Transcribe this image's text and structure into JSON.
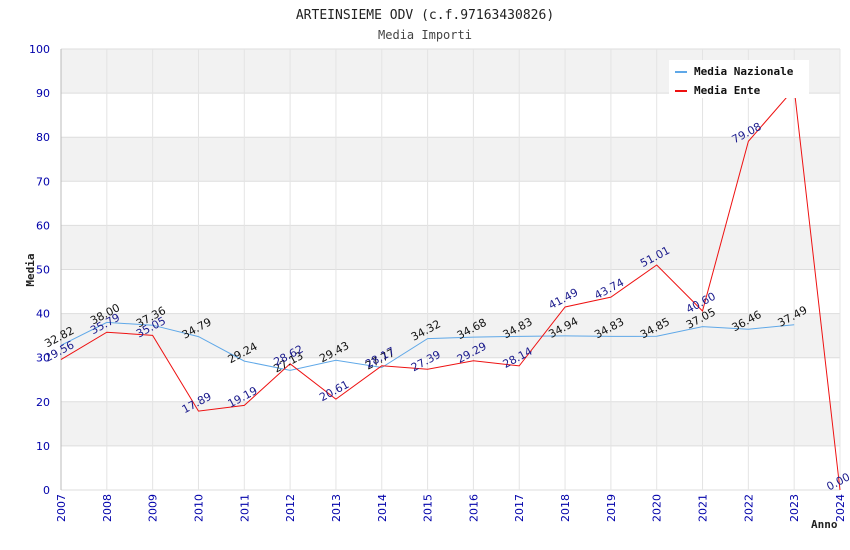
{
  "chart_data": {
    "type": "line",
    "title": "ARTEINSIEME ODV (c.f.97163430826)",
    "subtitle": "Media Importi",
    "xlabel": "Anno",
    "ylabel": "Media",
    "ylim": [
      0,
      100
    ],
    "yticks": [
      0,
      10,
      20,
      30,
      40,
      50,
      60,
      70,
      80,
      90,
      100
    ],
    "categories": [
      "2007",
      "2008",
      "2009",
      "2010",
      "2011",
      "2012",
      "2013",
      "2014",
      "2015",
      "2016",
      "2017",
      "2018",
      "2019",
      "2020",
      "2021",
      "2022",
      "2023",
      "2024"
    ],
    "legend_position": "top-right",
    "series": [
      {
        "name": "Media Nazionale",
        "color": "#5fa8e8",
        "label_color": "#111111",
        "values": [
          32.82,
          38.0,
          37.36,
          34.79,
          29.24,
          27.13,
          29.43,
          27.77,
          34.32,
          34.68,
          34.83,
          34.94,
          34.83,
          34.85,
          37.05,
          36.46,
          37.49,
          null
        ],
        "labels": [
          "32.82",
          "38.00",
          "37.36",
          "34.79",
          "29.24",
          "27.13",
          "29.43",
          "27.77",
          "34.32",
          "34.68",
          "34.83",
          "34.94",
          "34.83",
          "34.85",
          "37.05",
          "36.46",
          "37.49",
          null
        ]
      },
      {
        "name": "Media Ente",
        "color": "#ee1111",
        "label_color": "#1a1a8c",
        "values": [
          29.56,
          35.79,
          35.05,
          17.89,
          19.19,
          28.62,
          20.61,
          28.17,
          27.39,
          29.29,
          28.14,
          41.49,
          43.74,
          51.01,
          40.6,
          79.08,
          91.0,
          0.0
        ],
        "labels": [
          "29.56",
          "35.79",
          "35.05",
          "17.89",
          "19.19",
          "28.62",
          "20.61",
          "28.17",
          "27.39",
          "29.29",
          "28.14",
          "41.49",
          "43.74",
          "51.01",
          "40.60",
          "79.08",
          null,
          "0.00"
        ]
      }
    ]
  }
}
